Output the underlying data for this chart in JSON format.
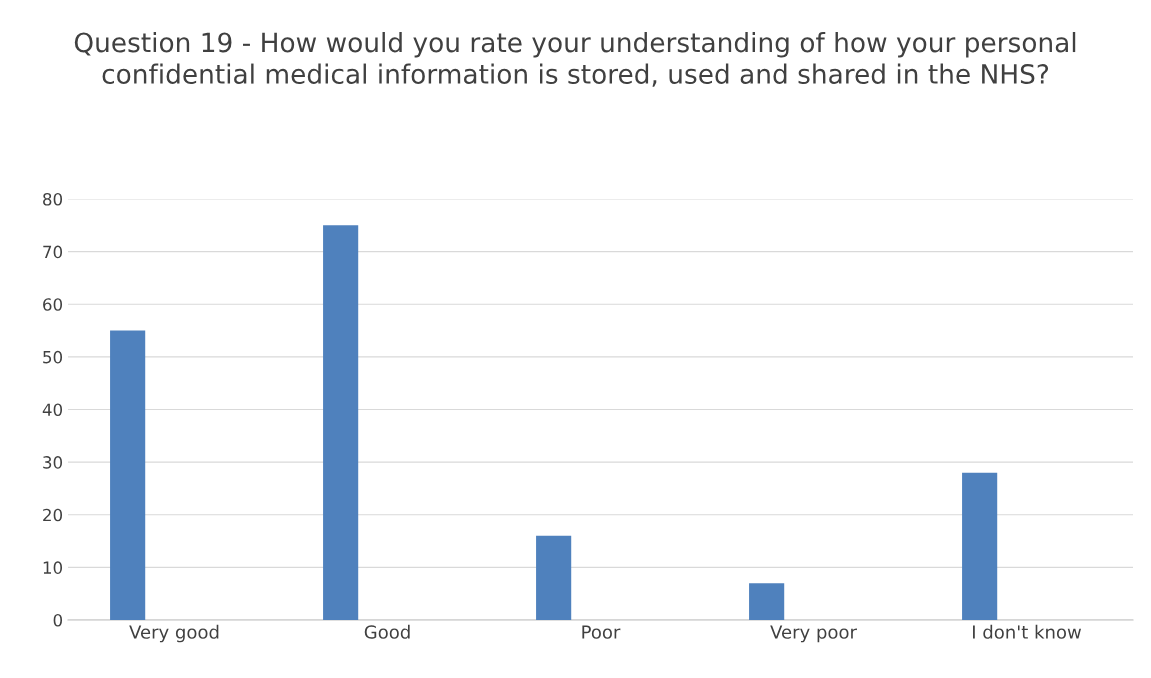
{
  "chart_data": {
    "type": "bar",
    "title": "Question 19 - How would you rate your understanding of how your personal confidential medical information is stored, used and shared in the NHS?",
    "categories": [
      "Very good",
      "Good",
      "Poor",
      "Very poor",
      "I don't know"
    ],
    "values": [
      55,
      75,
      16,
      7,
      28
    ],
    "color": "#4f81bd",
    "ylim": [
      0,
      80
    ],
    "yticks": [
      0,
      10,
      20,
      30,
      40,
      50,
      60,
      70,
      80
    ],
    "grid": "y",
    "legend": false
  }
}
